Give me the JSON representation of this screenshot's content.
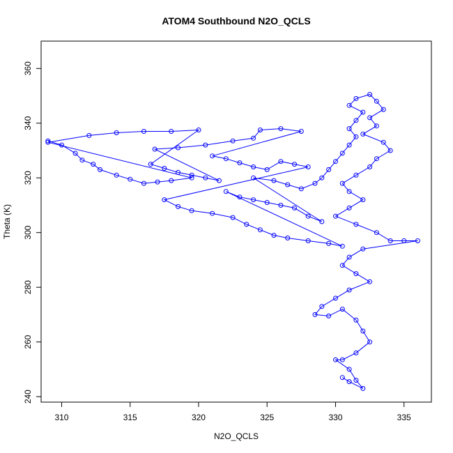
{
  "chart_data": {
    "type": "scatter",
    "title": "ATOM4 Southbound N2O_QCLS",
    "xlabel": "N2O_QCLS",
    "ylabel": "Theta (K)",
    "xlim": [
      308.5,
      337
    ],
    "ylim": [
      238,
      370
    ],
    "xticks": [
      310,
      315,
      320,
      325,
      330,
      335
    ],
    "yticks": [
      240,
      260,
      280,
      300,
      320,
      340,
      360
    ],
    "grid": false,
    "color": "#0000ff",
    "series": [
      {
        "values": [
          {
            "x": 309.0,
            "y": 333.5
          },
          {
            "x": 310.0,
            "y": 332.0
          },
          {
            "x": 311.0,
            "y": 329.0
          },
          {
            "x": 311.5,
            "y": 326.5
          },
          {
            "x": 312.3,
            "y": 325.0
          },
          {
            "x": 312.8,
            "y": 323.0
          },
          {
            "x": 314.0,
            "y": 321.0
          },
          {
            "x": 315.0,
            "y": 319.5
          },
          {
            "x": 316.0,
            "y": 318.0
          },
          {
            "x": 317.0,
            "y": 318.5
          },
          {
            "x": 318.0,
            "y": 319.0
          },
          {
            "x": 319.5,
            "y": 320.0
          },
          {
            "x": 309.0,
            "y": 333.0
          },
          {
            "x": 312.0,
            "y": 335.5
          },
          {
            "x": 314.0,
            "y": 336.5
          },
          {
            "x": 316.0,
            "y": 337.0
          },
          {
            "x": 318.0,
            "y": 337.0
          },
          {
            "x": 320.0,
            "y": 337.5
          },
          {
            "x": 316.5,
            "y": 325.0
          },
          {
            "x": 317.5,
            "y": 323.5
          },
          {
            "x": 318.5,
            "y": 322.0
          },
          {
            "x": 319.5,
            "y": 321.0
          },
          {
            "x": 320.5,
            "y": 320.0
          },
          {
            "x": 321.5,
            "y": 319.0
          },
          {
            "x": 316.8,
            "y": 330.5
          },
          {
            "x": 318.5,
            "y": 331.0
          },
          {
            "x": 320.5,
            "y": 332.0
          },
          {
            "x": 322.5,
            "y": 333.5
          },
          {
            "x": 324.0,
            "y": 334.5
          },
          {
            "x": 324.5,
            "y": 337.5
          },
          {
            "x": 326.0,
            "y": 338.0
          },
          {
            "x": 327.5,
            "y": 337.0
          },
          {
            "x": 321.0,
            "y": 328.0
          },
          {
            "x": 322.0,
            "y": 327.0
          },
          {
            "x": 323.0,
            "y": 325.5
          },
          {
            "x": 324.0,
            "y": 324.0
          },
          {
            "x": 325.0,
            "y": 323.0
          },
          {
            "x": 326.0,
            "y": 326.0
          },
          {
            "x": 327.0,
            "y": 325.0
          },
          {
            "x": 328.0,
            "y": 324.0
          },
          {
            "x": 317.5,
            "y": 312.0
          },
          {
            "x": 318.5,
            "y": 309.5
          },
          {
            "x": 319.5,
            "y": 308.0
          },
          {
            "x": 321.0,
            "y": 307.0
          },
          {
            "x": 322.5,
            "y": 305.5
          },
          {
            "x": 323.5,
            "y": 303.0
          },
          {
            "x": 324.5,
            "y": 301.0
          },
          {
            "x": 325.5,
            "y": 299.0
          },
          {
            "x": 326.5,
            "y": 298.0
          },
          {
            "x": 328.0,
            "y": 297.0
          },
          {
            "x": 329.5,
            "y": 296.0
          },
          {
            "x": 330.5,
            "y": 295.0
          },
          {
            "x": 322.0,
            "y": 315.0
          },
          {
            "x": 323.0,
            "y": 313.0
          },
          {
            "x": 324.0,
            "y": 312.0
          },
          {
            "x": 325.0,
            "y": 311.0
          },
          {
            "x": 326.0,
            "y": 310.0
          },
          {
            "x": 327.0,
            "y": 309.0
          },
          {
            "x": 328.0,
            "y": 306.0
          },
          {
            "x": 329.0,
            "y": 304.0
          },
          {
            "x": 324.0,
            "y": 320.0
          },
          {
            "x": 325.5,
            "y": 319.0
          },
          {
            "x": 326.5,
            "y": 317.5
          },
          {
            "x": 327.5,
            "y": 316.0
          },
          {
            "x": 328.5,
            "y": 318.0
          },
          {
            "x": 329.0,
            "y": 320.0
          },
          {
            "x": 329.5,
            "y": 323.0
          },
          {
            "x": 330.0,
            "y": 326.0
          },
          {
            "x": 330.5,
            "y": 329.0
          },
          {
            "x": 331.0,
            "y": 332.0
          },
          {
            "x": 331.5,
            "y": 335.0
          },
          {
            "x": 331.0,
            "y": 338.0
          },
          {
            "x": 331.5,
            "y": 341.0
          },
          {
            "x": 332.0,
            "y": 344.0
          },
          {
            "x": 331.0,
            "y": 346.5
          },
          {
            "x": 331.5,
            "y": 349.0
          },
          {
            "x": 332.5,
            "y": 350.5
          },
          {
            "x": 333.0,
            "y": 348.0
          },
          {
            "x": 333.5,
            "y": 345.0
          },
          {
            "x": 332.5,
            "y": 342.0
          },
          {
            "x": 333.0,
            "y": 339.0
          },
          {
            "x": 332.0,
            "y": 336.0
          },
          {
            "x": 333.5,
            "y": 333.0
          },
          {
            "x": 334.0,
            "y": 330.0
          },
          {
            "x": 333.0,
            "y": 327.0
          },
          {
            "x": 332.5,
            "y": 324.0
          },
          {
            "x": 331.5,
            "y": 321.0
          },
          {
            "x": 330.5,
            "y": 318.0
          },
          {
            "x": 331.0,
            "y": 315.0
          },
          {
            "x": 332.0,
            "y": 312.0
          },
          {
            "x": 331.0,
            "y": 309.0
          },
          {
            "x": 330.0,
            "y": 306.0
          },
          {
            "x": 331.5,
            "y": 303.0
          },
          {
            "x": 333.0,
            "y": 300.0
          },
          {
            "x": 334.0,
            "y": 297.0
          },
          {
            "x": 335.0,
            "y": 297.0
          },
          {
            "x": 336.0,
            "y": 297.0
          },
          {
            "x": 332.0,
            "y": 294.0
          },
          {
            "x": 331.0,
            "y": 291.0
          },
          {
            "x": 330.5,
            "y": 288.0
          },
          {
            "x": 331.5,
            "y": 285.0
          },
          {
            "x": 332.5,
            "y": 282.0
          },
          {
            "x": 331.0,
            "y": 279.0
          },
          {
            "x": 330.0,
            "y": 276.0
          },
          {
            "x": 329.0,
            "y": 273.0
          },
          {
            "x": 328.5,
            "y": 270.0
          },
          {
            "x": 329.5,
            "y": 269.5
          },
          {
            "x": 330.5,
            "y": 272.0
          },
          {
            "x": 331.5,
            "y": 268.0
          },
          {
            "x": 332.0,
            "y": 264.0
          },
          {
            "x": 332.5,
            "y": 260.0
          },
          {
            "x": 331.5,
            "y": 256.0
          },
          {
            "x": 330.5,
            "y": 253.5
          },
          {
            "x": 330.0,
            "y": 253.5
          },
          {
            "x": 331.0,
            "y": 250.0
          },
          {
            "x": 331.5,
            "y": 246.0
          },
          {
            "x": 332.0,
            "y": 243.0
          },
          {
            "x": 331.0,
            "y": 245.5
          },
          {
            "x": 330.5,
            "y": 247.0
          }
        ]
      }
    ]
  }
}
